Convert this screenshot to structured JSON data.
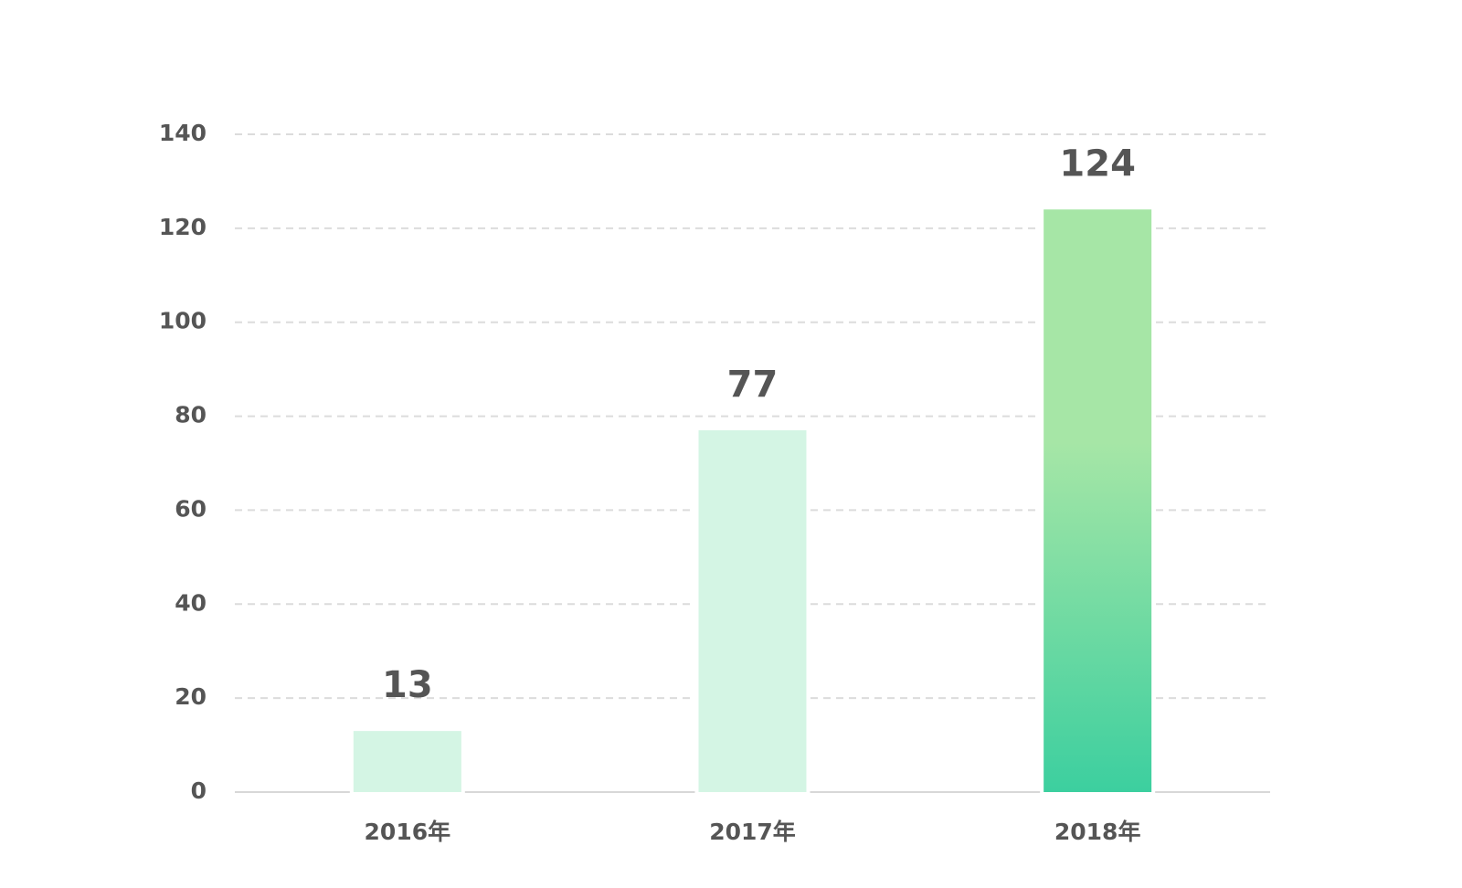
{
  "chart_data": {
    "type": "bar",
    "categories": [
      "2016年",
      "2017年",
      "2018年"
    ],
    "values": [
      13,
      77,
      124
    ],
    "colors": [
      "#d4f5e4",
      "#d4f5e4",
      [
        "#3ccf9f",
        "#a6e6a6"
      ]
    ],
    "ylim": [
      0,
      140
    ],
    "yticks": [
      0,
      20,
      40,
      60,
      80,
      100,
      120,
      140
    ],
    "grid": true
  }
}
